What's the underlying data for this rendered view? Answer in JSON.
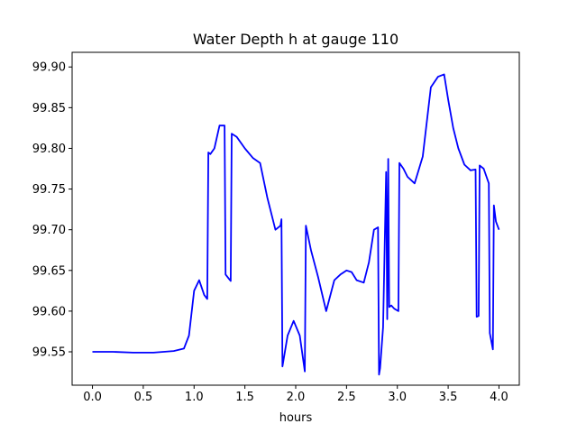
{
  "chart_data": {
    "type": "line",
    "title": "Water Depth h at gauge 110",
    "xlabel": "hours",
    "ylabel": "",
    "xlim": [
      -0.2,
      4.2
    ],
    "ylim": [
      99.509,
      99.918
    ],
    "xticks": [
      0.0,
      0.5,
      1.0,
      1.5,
      2.0,
      2.5,
      3.0,
      3.5,
      4.0
    ],
    "xtick_labels": [
      "0.0",
      "0.5",
      "1.0",
      "1.5",
      "2.0",
      "2.5",
      "3.0",
      "3.5",
      "4.0"
    ],
    "yticks": [
      99.55,
      99.6,
      99.65,
      99.7,
      99.75,
      99.8,
      99.85,
      99.9
    ],
    "ytick_labels": [
      "99.55",
      "99.60",
      "99.65",
      "99.70",
      "99.75",
      "99.80",
      "99.85",
      "99.90"
    ],
    "grid": false,
    "series": [
      {
        "color": "#0000ff",
        "x": [
          0.0,
          0.2,
          0.4,
          0.6,
          0.8,
          0.9,
          0.95,
          1.0,
          1.05,
          1.1,
          1.13,
          1.14,
          1.16,
          1.2,
          1.25,
          1.3,
          1.31,
          1.36,
          1.37,
          1.42,
          1.5,
          1.58,
          1.65,
          1.72,
          1.8,
          1.85,
          1.86,
          1.87,
          1.92,
          1.98,
          2.04,
          2.09,
          2.1,
          2.15,
          2.22,
          2.3,
          2.38,
          2.44,
          2.5,
          2.55,
          2.6,
          2.67,
          2.72,
          2.77,
          2.81,
          2.82,
          2.83,
          2.86,
          2.89,
          2.9,
          2.91,
          2.92,
          2.93,
          2.94,
          2.97,
          3.01,
          3.02,
          3.06,
          3.1,
          3.17,
          3.25,
          3.33,
          3.4,
          3.46,
          3.5,
          3.55,
          3.6,
          3.66,
          3.72,
          3.77,
          3.78,
          3.8,
          3.81,
          3.85,
          3.9,
          3.91,
          3.94,
          3.95,
          3.97,
          4.0
        ],
        "y": [
          99.55,
          99.55,
          99.549,
          99.549,
          99.551,
          99.554,
          99.57,
          99.625,
          99.638,
          99.62,
          99.615,
          99.795,
          99.793,
          99.8,
          99.828,
          99.828,
          99.645,
          99.637,
          99.818,
          99.814,
          99.8,
          99.788,
          99.782,
          99.74,
          99.7,
          99.705,
          99.713,
          99.532,
          99.57,
          99.588,
          99.57,
          99.526,
          99.705,
          99.675,
          99.642,
          99.6,
          99.638,
          99.645,
          99.65,
          99.648,
          99.638,
          99.635,
          99.66,
          99.7,
          99.703,
          99.522,
          99.53,
          99.58,
          99.771,
          99.59,
          99.787,
          99.605,
          99.606,
          99.607,
          99.603,
          99.6,
          99.782,
          99.775,
          99.765,
          99.757,
          99.79,
          99.875,
          99.888,
          99.891,
          99.86,
          99.825,
          99.8,
          99.78,
          99.773,
          99.774,
          99.593,
          99.594,
          99.779,
          99.775,
          99.757,
          99.573,
          99.553,
          99.73,
          99.71,
          99.7
        ]
      }
    ]
  }
}
